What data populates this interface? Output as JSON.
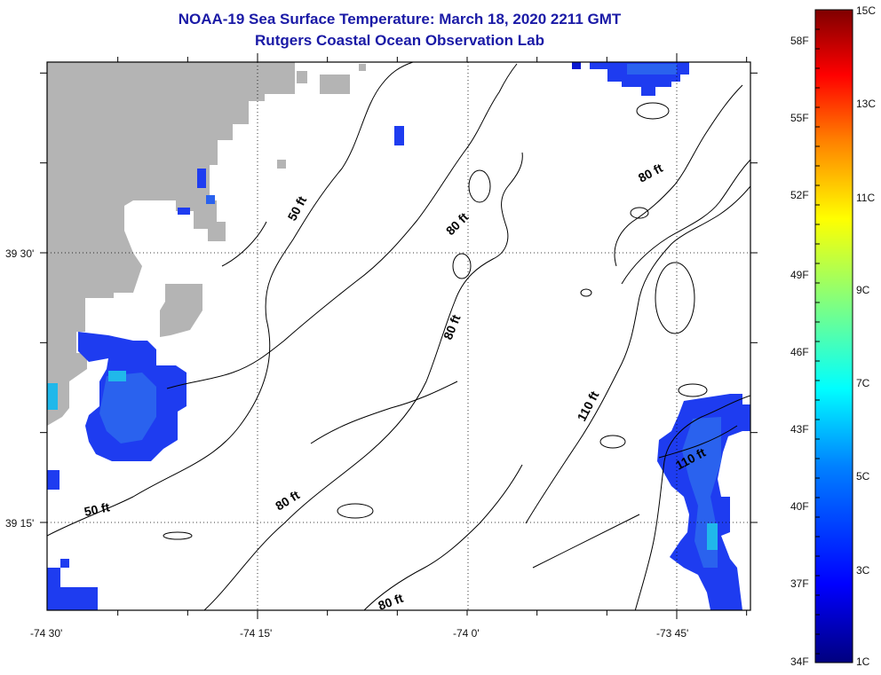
{
  "header": {
    "title": "NOAA-19 Sea Surface Temperature:  March 18, 2020 2211 GMT",
    "subtitle": "Rutgers Coastal Ocean Observation Lab"
  },
  "axes": {
    "lon_labels": [
      "-74 30'",
      "-74 15'",
      "-74 0'",
      "-73 45'"
    ],
    "lat_labels": [
      "39 30'",
      "39 15'"
    ]
  },
  "depth_contours": [
    {
      "label": "50 ft"
    },
    {
      "label": "50 ft"
    },
    {
      "label": "80 ft"
    },
    {
      "label": "80 ft"
    },
    {
      "label": "80 ft"
    },
    {
      "label": "80 ft"
    },
    {
      "label": "80 ft"
    },
    {
      "label": "110 ft"
    },
    {
      "label": "110 ft"
    }
  ],
  "colorbar": {
    "fahrenheit_labels": [
      "58F",
      "55F",
      "52F",
      "49F",
      "46F",
      "43F",
      "40F",
      "37F",
      "34F"
    ],
    "celsius_labels": [
      "15C",
      "13C",
      "11C",
      "9C",
      "7C",
      "5C",
      "3C",
      "1C"
    ],
    "colors": [
      "#00007f",
      "#0000ff",
      "#0080ff",
      "#00ffff",
      "#80ff80",
      "#ffff00",
      "#ff8000",
      "#ff0000",
      "#7f0000"
    ]
  },
  "colors": {
    "land": "#b4b4b4",
    "title": "#1a1aa6",
    "sst_deep_blue": "#1e3cf0",
    "sst_mid_blue": "#2a62ee",
    "sst_cyan": "#20b8ea"
  }
}
